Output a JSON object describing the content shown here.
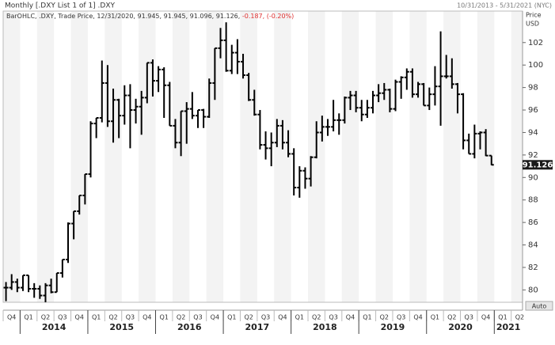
{
  "header": {
    "title": "Monthly [.DXY List 1 of 1] .DXY",
    "range": "10/31/2013 - 5/31/2021 (NYC)",
    "legend_text": "BarOHLC, .DXY, Trade Price, 12/31/2020, 91.945, 91.945, 91.096, 91.126,",
    "change_text": "-0.187, (-0.20%)",
    "auto_button": "Auto"
  },
  "chart_data": {
    "type": "ohlc",
    "axis_title": [
      "Price",
      "USD"
    ],
    "color": "#000000",
    "change_color": "#e03030",
    "ylim": [
      78.9,
      104.8
    ],
    "yticks": [
      80,
      82,
      84,
      86,
      88,
      90,
      92,
      94,
      96,
      98,
      100,
      102
    ],
    "quarters": [
      "Q4",
      "Q1",
      "Q2",
      "Q3",
      "Q4",
      "Q1",
      "Q2",
      "Q3",
      "Q4",
      "Q1",
      "Q2",
      "Q3",
      "Q4",
      "Q1",
      "Q2",
      "Q3",
      "Q4",
      "Q1",
      "Q2",
      "Q3",
      "Q4",
      "Q1",
      "Q2",
      "Q3",
      "Q4",
      "Q1",
      "Q2",
      "Q3",
      "Q4",
      "Q1",
      "Q2"
    ],
    "years": [
      "2014",
      "2015",
      "2016",
      "2017",
      "2018",
      "2019",
      "2020",
      "2021"
    ],
    "series": {
      "name": ".DXY",
      "open": [
        80.2,
        80.2,
        80.7,
        80.2,
        81.3,
        80.1,
        80.1,
        79.5,
        80.4,
        79.8,
        81.5,
        82.7,
        85.9,
        87.0,
        88.4,
        90.3,
        94.8,
        95.3,
        98.4,
        95.0,
        96.9,
        95.5,
        97.3,
        96.0,
        96.3,
        97.1,
        100.2,
        98.6,
        99.6,
        98.2,
        94.6,
        93.1,
        95.9,
        96.1,
        95.5,
        96.0,
        95.4,
        98.4,
        101.5,
        102.2,
        99.5,
        101.1,
        100.3,
        99.1,
        96.9,
        95.6,
        92.9,
        92.6,
        93.1,
        94.6,
        93.1,
        92.1,
        89.1,
        90.6,
        89.9,
        91.8,
        94.0,
        94.5,
        94.5,
        95.1,
        95.1,
        97.1,
        97.3,
        96.2,
        95.6,
        96.2,
        97.3,
        97.5,
        97.8,
        96.1,
        98.5,
        98.9,
        99.4,
        97.4,
        98.3,
        96.4,
        97.4,
        98.1,
        99.0,
        99.0,
        98.3,
        97.4,
        93.3,
        92.1,
        93.9,
        94.0,
        91.945
      ],
      "high": [
        80.7,
        81.4,
        81.0,
        81.3,
        81.3,
        80.6,
        80.4,
        80.6,
        81.0,
        81.5,
        82.7,
        86.0,
        87.0,
        88.4,
        90.3,
        95.0,
        95.3,
        100.4,
        100.0,
        97.9,
        97.0,
        98.2,
        98.3,
        97.0,
        97.7,
        100.2,
        100.5,
        99.9,
        99.8,
        98.5,
        95.2,
        95.9,
        96.7,
        97.6,
        96.0,
        96.1,
        98.8,
        101.5,
        103.3,
        103.8,
        101.8,
        102.3,
        101.0,
        99.3,
        97.8,
        96.0,
        94.1,
        94.0,
        95.2,
        95.1,
        94.2,
        92.6,
        91.0,
        90.9,
        91.9,
        95.0,
        95.5,
        95.2,
        96.9,
        95.7,
        97.2,
        97.7,
        97.7,
        96.9,
        96.9,
        97.7,
        98.3,
        98.4,
        97.9,
        98.7,
        99.0,
        99.7,
        99.7,
        98.5,
        98.4,
        98.0,
        99.9,
        103.0,
        100.9,
        100.6,
        98.4,
        97.5,
        93.9,
        94.7,
        94.1,
        94.3,
        91.945
      ],
      "low": [
        79.0,
        80.0,
        79.8,
        79.9,
        79.8,
        79.3,
        79.2,
        78.9,
        79.7,
        79.8,
        81.1,
        82.4,
        84.5,
        86.7,
        87.6,
        90.0,
        93.5,
        94.9,
        94.5,
        93.1,
        93.5,
        94.7,
        92.6,
        94.8,
        93.8,
        96.6,
        97.2,
        97.6,
        95.3,
        94.6,
        92.6,
        91.9,
        93.0,
        95.2,
        94.4,
        94.4,
        95.3,
        96.9,
        100.6,
        99.4,
        99.2,
        99.2,
        98.8,
        96.8,
        95.5,
        92.5,
        91.6,
        91.0,
        92.7,
        92.5,
        91.8,
        88.4,
        88.2,
        89.0,
        89.2,
        91.7,
        93.2,
        93.7,
        94.1,
        93.8,
        94.8,
        96.0,
        95.8,
        95.0,
        95.3,
        95.7,
        96.7,
        96.9,
        95.8,
        95.9,
        97.0,
        97.8,
        97.1,
        97.1,
        96.4,
        96.0,
        96.4,
        94.6,
        98.8,
        97.9,
        95.7,
        92.5,
        92.1,
        91.7,
        92.5,
        91.9,
        91.096
      ],
      "close": [
        80.2,
        80.7,
        80.2,
        81.3,
        80.1,
        80.1,
        79.5,
        80.4,
        79.8,
        81.5,
        82.7,
        85.9,
        87.0,
        88.4,
        90.3,
        94.8,
        95.3,
        98.4,
        95.0,
        96.9,
        95.5,
        97.3,
        96.0,
        96.3,
        97.1,
        100.2,
        98.6,
        99.6,
        98.2,
        94.6,
        93.1,
        95.9,
        96.1,
        95.5,
        96.0,
        95.4,
        98.4,
        101.5,
        102.2,
        99.5,
        101.1,
        100.3,
        99.1,
        96.9,
        95.6,
        92.9,
        92.6,
        93.1,
        94.6,
        93.1,
        92.1,
        89.1,
        90.6,
        89.9,
        91.8,
        94.0,
        94.5,
        94.5,
        95.1,
        95.1,
        97.1,
        97.3,
        96.2,
        95.6,
        96.2,
        97.3,
        97.5,
        97.8,
        96.1,
        98.5,
        98.9,
        99.4,
        97.4,
        98.3,
        96.4,
        97.4,
        98.1,
        99.0,
        99.0,
        98.3,
        97.4,
        93.3,
        92.1,
        93.9,
        94.0,
        91.945,
        91.126
      ]
    }
  }
}
